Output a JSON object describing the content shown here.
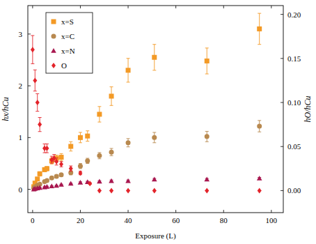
{
  "chart_data": {
    "type": "scatter",
    "x_label": "Exposure (L)",
    "y_label": "hx/hCu",
    "y2_label": "hO/hCu",
    "xlim": [
      -2,
      105
    ],
    "xticks": [
      0,
      20,
      40,
      60,
      80,
      100
    ],
    "ylim": [
      -0.45,
      3.55
    ],
    "yticks": [
      0,
      1,
      2,
      3
    ],
    "y2lim": [
      -0.025,
      0.21
    ],
    "y2ticks": [
      {
        "value": 0,
        "label": "0.00"
      },
      {
        "value": 0.05,
        "label": "0.05"
      },
      {
        "value": 0.1,
        "label": "0.10"
      },
      {
        "value": 0.15,
        "label": "0.15"
      },
      {
        "value": 0.2,
        "label": "0.20"
      }
    ],
    "grid": false,
    "legend": "upper left",
    "series": [
      {
        "name": "x=S",
        "color": "#f39a26",
        "marker": "square",
        "x": [
          0.5,
          1,
          2,
          3,
          5,
          6,
          8,
          10,
          12,
          16,
          20,
          23,
          28,
          33,
          40,
          51,
          73,
          95
        ],
        "values": [
          0.05,
          0.12,
          0.2,
          0.3,
          0.38,
          0.4,
          0.55,
          0.6,
          0.62,
          0.83,
          1.0,
          1.03,
          1.45,
          1.8,
          2.3,
          2.55,
          2.48,
          3.1
        ],
        "errors": [
          0.02,
          0.03,
          0.03,
          0.04,
          0.04,
          0.04,
          0.06,
          0.06,
          0.07,
          0.09,
          0.1,
          0.1,
          0.15,
          0.18,
          0.23,
          0.25,
          0.25,
          0.3
        ]
      },
      {
        "name": "x=C",
        "color": "#b8894f",
        "marker": "circle",
        "x": [
          0.5,
          1,
          2,
          3,
          5,
          6,
          8,
          10,
          12,
          16,
          20,
          23,
          28,
          33,
          40,
          51,
          73,
          95
        ],
        "values": [
          0.02,
          0.05,
          0.08,
          0.1,
          0.15,
          0.17,
          0.22,
          0.25,
          0.28,
          0.32,
          0.45,
          0.55,
          0.65,
          0.72,
          0.9,
          1.0,
          1.02,
          1.22
        ],
        "errors": [
          0.01,
          0.01,
          0.01,
          0.02,
          0.02,
          0.02,
          0.03,
          0.03,
          0.03,
          0.04,
          0.05,
          0.05,
          0.06,
          0.07,
          0.08,
          0.1,
          0.1,
          0.11
        ]
      },
      {
        "name": "x=N",
        "color": "#a8174f",
        "marker": "triangle",
        "x": [
          0.5,
          1,
          2,
          3,
          5,
          6,
          8,
          10,
          12,
          16,
          20,
          23,
          28,
          33,
          40,
          51,
          73,
          95
        ],
        "values": [
          0.0,
          0.01,
          0.02,
          0.03,
          0.04,
          0.05,
          0.06,
          0.07,
          0.09,
          0.11,
          0.13,
          0.14,
          0.15,
          0.16,
          0.16,
          0.19,
          0.19,
          0.21
        ],
        "errors": [
          0.005,
          0.005,
          0.01,
          0.01,
          0.01,
          0.01,
          0.01,
          0.01,
          0.01,
          0.01,
          0.015,
          0.015,
          0.015,
          0.02,
          0.02,
          0.02,
          0.02,
          0.02
        ]
      },
      {
        "name": "O",
        "color": "#e3242b",
        "marker": "diamond",
        "axis": "y2",
        "x": [
          0,
          1,
          2,
          3,
          5,
          6,
          8,
          9,
          10,
          12,
          16,
          20,
          24,
          28,
          33,
          40,
          51,
          73,
          95
        ],
        "values": [
          0.16,
          0.125,
          0.1,
          0.075,
          0.048,
          0.048,
          0.035,
          0.037,
          0.033,
          0.03,
          0.025,
          0.02,
          0.008,
          0,
          0,
          0,
          0,
          0,
          0
        ],
        "errors": [
          0.016,
          0.012,
          0.01,
          0.008,
          0.005,
          0.005,
          0.004,
          0.004,
          0.004,
          0.003,
          0.003,
          0.002,
          0.001,
          0,
          0,
          0,
          0,
          0,
          0
        ]
      }
    ]
  }
}
